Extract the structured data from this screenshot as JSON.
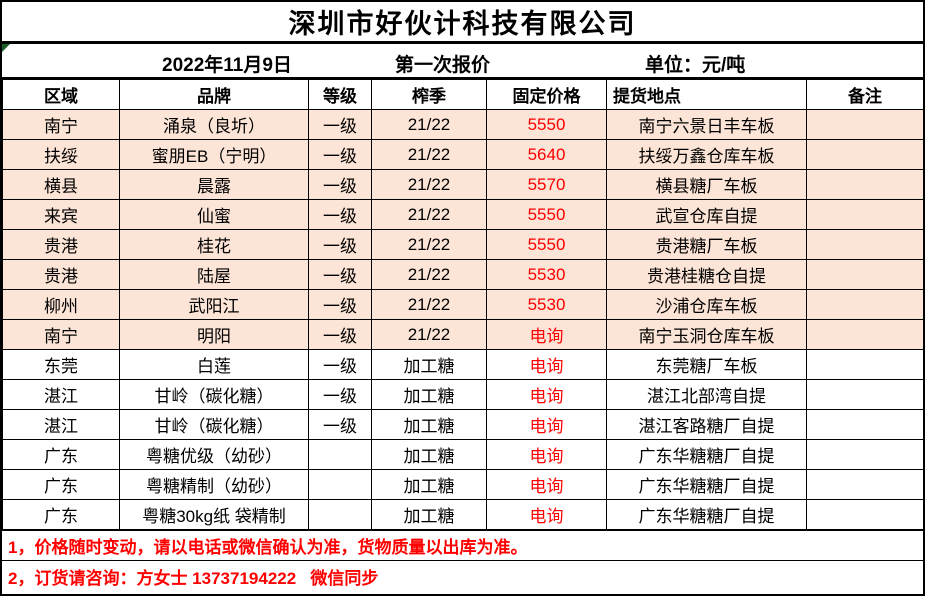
{
  "title": "深圳市好伙计科技有限公司",
  "subheader": {
    "date": "2022年11月9日",
    "quote": "第一次报价",
    "unit": "单位：元/吨"
  },
  "columns": [
    "区域",
    "品牌",
    "等级",
    "榨季",
    "固定价格",
    "提货地点",
    "备注"
  ],
  "rows": [
    {
      "region": "南宁",
      "brand": "涌泉（良圻）",
      "grade": "一级",
      "season": "21/22",
      "price": "5550",
      "pickup": "南宁六景日丰车板",
      "note": "",
      "highlight": true
    },
    {
      "region": "扶绥",
      "brand": "蜜朋EB（宁明）",
      "grade": "一级",
      "season": "21/22",
      "price": "5640",
      "pickup": "扶绥万鑫仓库车板",
      "note": "",
      "highlight": true
    },
    {
      "region": "横县",
      "brand": "晨露",
      "grade": "一级",
      "season": "21/22",
      "price": "5570",
      "pickup": "横县糖厂车板",
      "note": "",
      "highlight": true
    },
    {
      "region": "来宾",
      "brand": "仙蜜",
      "grade": "一级",
      "season": "21/22",
      "price": "5550",
      "pickup": "武宣仓库自提",
      "note": "",
      "highlight": true
    },
    {
      "region": "贵港",
      "brand": "桂花",
      "grade": "一级",
      "season": "21/22",
      "price": "5550",
      "pickup": "贵港糖厂车板",
      "note": "",
      "highlight": true
    },
    {
      "region": "贵港",
      "brand": "陆屋",
      "grade": "一级",
      "season": "21/22",
      "price": "5530",
      "pickup": "贵港桂糖仓自提",
      "note": "",
      "highlight": true
    },
    {
      "region": "柳州",
      "brand": "武阳江",
      "grade": "一级",
      "season": "21/22",
      "price": "5530",
      "pickup": "沙浦仓库车板",
      "note": "",
      "highlight": true
    },
    {
      "region": "南宁",
      "brand": "明阳",
      "grade": "一级",
      "season": "21/22",
      "price": "电询",
      "pickup": "南宁玉洞仓库车板",
      "note": "",
      "highlight": true
    },
    {
      "region": "东莞",
      "brand": "白莲",
      "grade": "一级",
      "season": "加工糖",
      "price": "电询",
      "pickup": "东莞糖厂车板",
      "note": "",
      "highlight": false
    },
    {
      "region": "湛江",
      "brand": "甘岭（碳化糖）",
      "grade": "一级",
      "season": "加工糖",
      "price": "电询",
      "pickup": "湛江北部湾自提",
      "note": "",
      "highlight": false
    },
    {
      "region": "湛江",
      "brand": "甘岭（碳化糖）",
      "grade": "一级",
      "season": "加工糖",
      "price": "电询",
      "pickup": "湛江客路糖厂自提",
      "note": "",
      "highlight": false
    },
    {
      "region": "广东",
      "brand": "粤糖优级（幼砂）",
      "grade": "",
      "season": "加工糖",
      "price": "电询",
      "pickup": "广东华糖糖厂自提",
      "note": "",
      "highlight": false
    },
    {
      "region": "广东",
      "brand": "粤糖精制（幼砂）",
      "grade": "",
      "season": "加工糖",
      "price": "电询",
      "pickup": "广东华糖糖厂自提",
      "note": "",
      "highlight": false
    },
    {
      "region": "广东",
      "brand": "粤糖30kg纸 袋精制",
      "grade": "",
      "season": "加工糖",
      "price": "电询",
      "pickup": "广东华糖糖厂自提",
      "note": "",
      "highlight": false
    }
  ],
  "notes": [
    "1，价格随时变动，请以电话或微信确认为准，货物质量以出库为准。",
    "2，订货请咨询：方女士 13737194222   微信同步"
  ],
  "colors": {
    "highlight_bg": "#fce4d6",
    "price_red": "#ff0000",
    "note_red": "#ff0000",
    "error_triangle_green": "#1a5c2a",
    "border_black": "#000000"
  }
}
